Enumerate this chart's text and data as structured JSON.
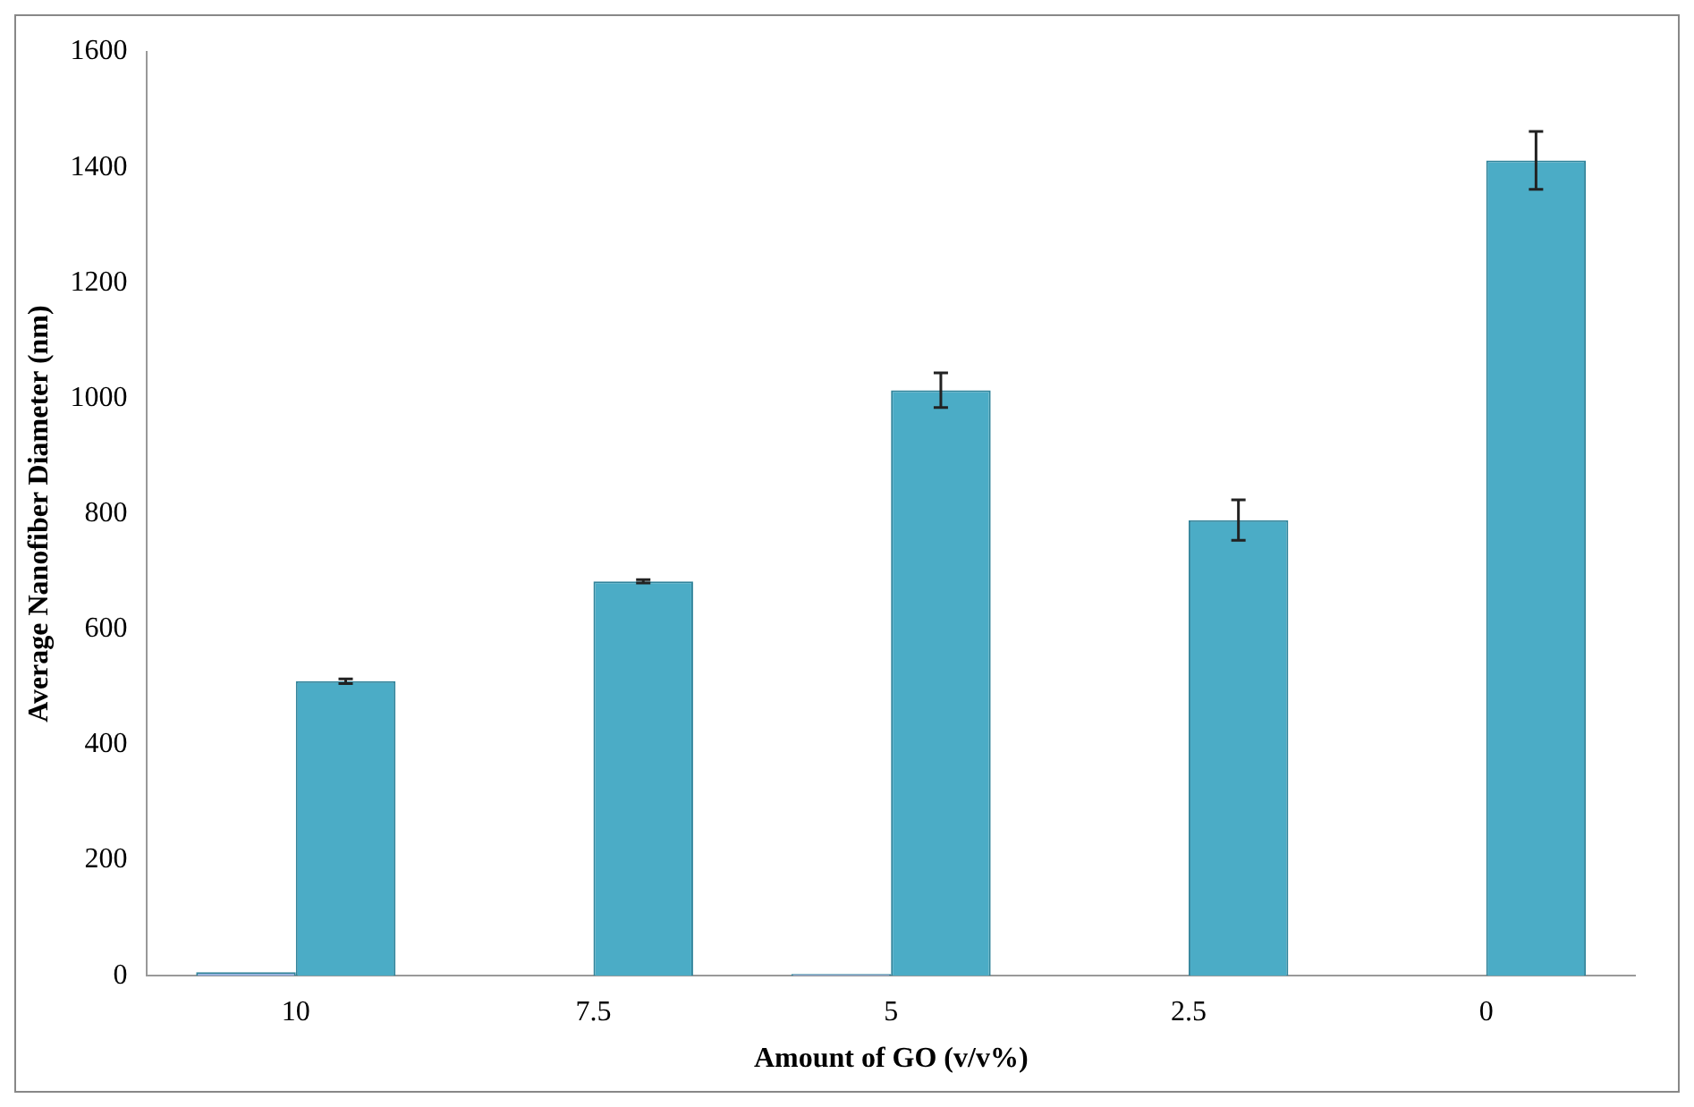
{
  "chart_data": {
    "type": "bar",
    "xlabel": "Amount of GO (v/v%)",
    "ylabel": "Average Nanofiber Diameter (nm)",
    "categories": [
      "10",
      "7.5",
      "5",
      "2.5",
      "0"
    ],
    "series": [
      {
        "color": "#8faadc",
        "values": [
          6,
          0,
          3,
          0,
          0
        ]
      },
      {
        "color": "#4bacc6",
        "values": [
          510,
          683,
          1014,
          789,
          1412
        ],
        "errors": [
          4,
          3,
          30,
          35,
          50
        ]
      }
    ],
    "ylim": [
      0,
      1600
    ],
    "yticks": [
      0,
      200,
      400,
      600,
      800,
      1000,
      1200,
      1400,
      1600
    ],
    "grid": false,
    "legend": false
  }
}
